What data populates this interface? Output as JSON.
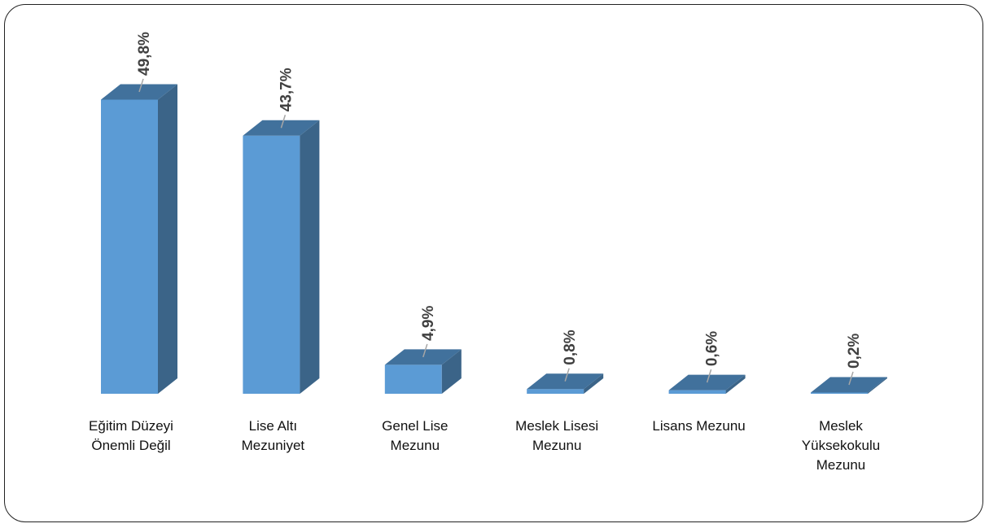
{
  "chart_data": {
    "type": "bar",
    "style": "3d-column",
    "categories": [
      "Eğitim Düzeyi\nÖnemli Değil",
      "Lise Altı\nMezuniyet",
      "Genel Lise\nMezunu",
      "Meslek Lisesi\nMezunu",
      "Lisans Mezunu",
      "Meslek\nYüksekokulu\nMezunu"
    ],
    "values": [
      49.8,
      43.7,
      4.9,
      0.8,
      0.6,
      0.2
    ],
    "data_labels": [
      "49,8%",
      "43,7%",
      "4,9%",
      "0,8%",
      "0,6%",
      "0,2%"
    ],
    "title": "",
    "xlabel": "",
    "ylabel": "",
    "ylim": [
      0,
      50
    ],
    "grid": false,
    "legend": "none",
    "colors": {
      "front": "#5b9bd5",
      "side": "#3b6488",
      "top": "#41719c",
      "leader": "#a6a6a6",
      "label": "#404040"
    }
  }
}
